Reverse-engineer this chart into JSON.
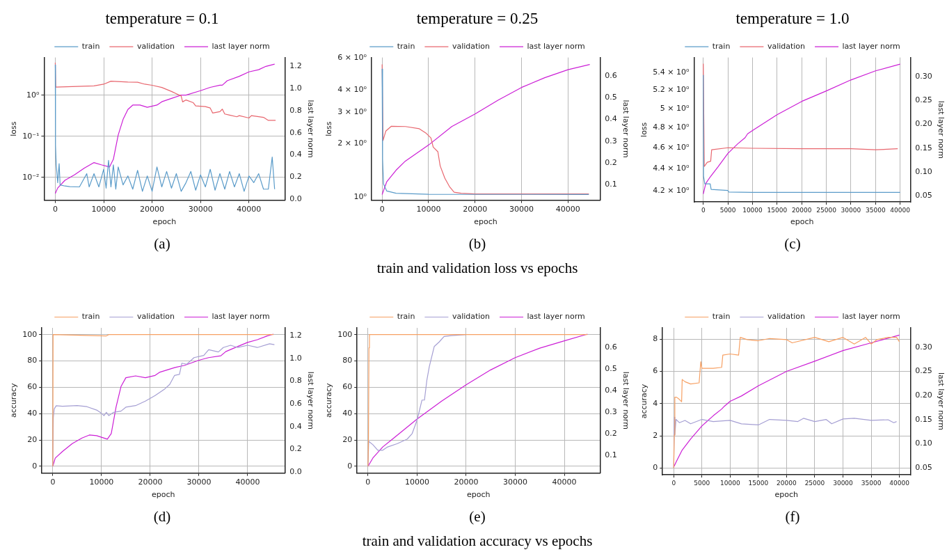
{
  "chart_data": [
    {
      "type": "line",
      "title": "temperature = 0.1",
      "xlabel": "epoch",
      "ylabel": "loss",
      "y2label": "last layer norm",
      "annotations": [
        "(a)"
      ],
      "log": "y",
      "grid": true,
      "legend": "top",
      "xlim": [
        -2300,
        47400
      ],
      "xticks": [
        0,
        10000,
        20000,
        30000,
        40000
      ],
      "ylim": [
        0.0028,
        8.3
      ],
      "yticks": [
        {
          "value": 0.01,
          "label": "10⁻²"
        },
        {
          "value": 0.1,
          "label": "10⁻¹"
        },
        {
          "value": 1,
          "label": "10⁰"
        }
      ],
      "y2lim": [
        -0.01,
        1.28
      ],
      "y2ticks": [
        {
          "value": 0,
          "label": "0.0"
        },
        0.2,
        0.4,
        0.6,
        0.8,
        {
          "value": 1,
          "label": "1.0"
        },
        1.2
      ],
      "series": [
        {
          "name": "train",
          "color": "#5a9bc9",
          "x": [
            0,
            50,
            200,
            500,
            800,
            1000,
            2000,
            3000,
            5000,
            6500,
            7000,
            8000,
            9000,
            10000,
            10500,
            11000,
            11500,
            12000,
            12500,
            13000,
            14000,
            15000,
            16000,
            17000,
            18000,
            19000,
            20000,
            21000,
            22000,
            23000,
            24000,
            25000,
            26000,
            27000,
            28000,
            29000,
            30000,
            31000,
            32000,
            33000,
            34000,
            35000,
            36000,
            37000,
            38000,
            39000,
            40000,
            41000,
            42000,
            43000,
            44000,
            44800,
            45300
          ],
          "values": [
            5.5,
            0.062,
            0.0203,
            0.0075,
            0.0216,
            0.0066,
            0.0062,
            0.006,
            0.0059,
            0.0124,
            0.0059,
            0.0124,
            0.0059,
            0.0158,
            0.0055,
            0.026,
            0.0059,
            0.0203,
            0.0052,
            0.018,
            0.0066,
            0.0109,
            0.0052,
            0.0149,
            0.0046,
            0.0109,
            0.0046,
            0.018,
            0.0059,
            0.014,
            0.0055,
            0.0124,
            0.0046,
            0.0075,
            0.014,
            0.0049,
            0.0116,
            0.0059,
            0.0158,
            0.0049,
            0.0124,
            0.0052,
            0.014,
            0.0059,
            0.0124,
            0.0046,
            0.0109,
            0.0075,
            0.0124,
            0.0052,
            0.0052,
            0.0314,
            0.0052
          ]
        },
        {
          "name": "validation",
          "color": "#e8666e",
          "x": [
            0,
            100,
            8000,
            10000,
            11500,
            15000,
            17000,
            18500,
            20000,
            22000,
            24000,
            26000,
            26300,
            27000,
            28500,
            29000,
            31000,
            32000,
            32500,
            34000,
            34500,
            35000,
            36000,
            37500,
            38000,
            40000,
            40500,
            43000,
            44000,
            45500
          ],
          "values": [
            6.2,
            1.58,
            1.69,
            1.86,
            2.2,
            2.1,
            2.08,
            1.86,
            1.75,
            1.55,
            1.24,
            0.96,
            0.69,
            0.77,
            0.66,
            0.55,
            0.53,
            0.49,
            0.37,
            0.4,
            0.46,
            0.35,
            0.33,
            0.3,
            0.32,
            0.28,
            0.32,
            0.29,
            0.245,
            0.245
          ]
        },
        {
          "name": "last layer norm",
          "color": "#cc1fd6",
          "axis": "y2",
          "x": [
            0,
            500,
            2000,
            4000,
            6000,
            8000,
            9500,
            11200,
            12000,
            13000,
            14000,
            15000,
            16000,
            17500,
            19000,
            21000,
            22000,
            24000,
            26000,
            27000,
            30000,
            32000,
            34000,
            34500,
            35500,
            38000,
            40000,
            42000,
            43500,
            45300
          ],
          "values": [
            0.05,
            0.1,
            0.17,
            0.22,
            0.28,
            0.33,
            0.31,
            0.29,
            0.36,
            0.58,
            0.72,
            0.81,
            0.85,
            0.85,
            0.83,
            0.85,
            0.88,
            0.91,
            0.94,
            0.94,
            0.98,
            1.01,
            1.03,
            1.03,
            1.07,
            1.11,
            1.15,
            1.17,
            1.2,
            1.22
          ]
        }
      ]
    },
    {
      "type": "line",
      "title": "temperature = 0.25",
      "xlabel": "epoch",
      "ylabel": "loss",
      "y2label": "last layer norm",
      "annotations": [
        "(b)",
        "train and validation loss vs epochs"
      ],
      "log": "y",
      "grid": "x",
      "legend": "top",
      "xlim": [
        -2300,
        46900
      ],
      "xticks": [
        0,
        10000,
        20000,
        30000,
        40000
      ],
      "ylim": [
        0.965,
        6.05
      ],
      "yticks": [
        {
          "value": 1,
          "label": "10⁰"
        },
        {
          "value": 2,
          "label": "2 × 10⁰"
        },
        {
          "value": 3,
          "label": "3 × 10⁰"
        },
        {
          "value": 4,
          "label": "4 × 10⁰"
        },
        {
          "value": 6,
          "label": "6 × 10⁰"
        }
      ],
      "y2lim": [
        0.028,
        0.685
      ],
      "y2ticks": [
        0.1,
        0.2,
        0.3,
        0.4,
        0.5,
        0.6
      ],
      "series": [
        {
          "name": "train",
          "color": "#5a9bc9",
          "x": [
            0,
            100,
            300,
            1000,
            3000,
            10000,
            44500
          ],
          "values": [
            5.22,
            1.64,
            1.19,
            1.086,
            1.055,
            1.042,
            1.039
          ]
        },
        {
          "name": "validation",
          "color": "#e8666e",
          "x": [
            0,
            200,
            800,
            2000,
            5000,
            8000,
            9500,
            10500,
            11000,
            12000,
            12500,
            13500,
            14500,
            15500,
            17000,
            20000,
            30000,
            44500
          ],
          "values": [
            5.54,
            2.08,
            2.35,
            2.5,
            2.49,
            2.42,
            2.28,
            2.15,
            1.91,
            1.8,
            1.5,
            1.28,
            1.15,
            1.07,
            1.055,
            1.045,
            1.045,
            1.045
          ]
        },
        {
          "name": "last layer norm",
          "color": "#cc1fd6",
          "axis": "y2",
          "x": [
            0,
            1000,
            3000,
            5000,
            10000,
            15000,
            20000,
            25000,
            30000,
            35000,
            40000,
            44700
          ],
          "values": [
            0.054,
            0.113,
            0.166,
            0.208,
            0.282,
            0.367,
            0.425,
            0.489,
            0.547,
            0.592,
            0.629,
            0.653
          ]
        }
      ]
    },
    {
      "type": "line",
      "title": "temperature = 1.0",
      "xlabel": "epoch",
      "ylabel": "loss",
      "y2label": "last layer norm",
      "annotations": [
        "(c)"
      ],
      "log": "y",
      "grid": "x",
      "legend": "top",
      "xlim": [
        -1900,
        42070
      ],
      "xticks": [
        0,
        5000,
        10000,
        15000,
        20000,
        25000,
        30000,
        35000,
        40000
      ],
      "ylim": [
        4.123,
        5.573
      ],
      "yticks": [
        {
          "value": 4.2,
          "label": "4.2 × 10⁰"
        },
        {
          "value": 4.4,
          "label": "4.4 × 10⁰"
        },
        {
          "value": 4.6,
          "label": "4.6 × 10⁰"
        },
        {
          "value": 4.8,
          "label": "4.8 × 10⁰"
        },
        {
          "value": 5,
          "label": "5 × 10⁰"
        },
        {
          "value": 5.2,
          "label": "5.2 × 10⁰"
        },
        {
          "value": 5.4,
          "label": "5.4 × 10⁰"
        }
      ],
      "y2lim": [
        0.0374,
        0.34
      ],
      "y2ticks": [
        0.05,
        {
          "value": 0.1,
          "label": "0.10"
        },
        0.15,
        {
          "value": 0.2,
          "label": "0.20"
        },
        0.25,
        {
          "value": 0.3,
          "label": "0.30"
        }
      ],
      "series": [
        {
          "name": "train",
          "color": "#5a9bc9",
          "x": [
            0,
            50,
            300,
            1400,
            1600,
            5000,
            5200,
            10000,
            40000
          ],
          "values": [
            5.37,
            4.33,
            4.26,
            4.26,
            4.21,
            4.2,
            4.186,
            4.183,
            4.183
          ]
        },
        {
          "name": "validation",
          "color": "#e8666e",
          "x": [
            0,
            200,
            800,
            1500,
            1700,
            5000,
            10000,
            20000,
            30000,
            35000,
            39500
          ],
          "values": [
            5.5,
            4.42,
            4.46,
            4.47,
            4.58,
            4.6,
            4.595,
            4.59,
            4.59,
            4.58,
            4.59
          ]
        },
        {
          "name": "last layer norm",
          "color": "#cc1fd6",
          "axis": "y2",
          "x": [
            0,
            500,
            1500,
            3000,
            5000,
            7000,
            8500,
            9000,
            10000,
            15000,
            20000,
            25000,
            30000,
            35000,
            40000
          ],
          "values": [
            0.054,
            0.076,
            0.091,
            0.111,
            0.139,
            0.159,
            0.172,
            0.18,
            0.187,
            0.22,
            0.248,
            0.27,
            0.293,
            0.312,
            0.326
          ]
        }
      ]
    },
    {
      "type": "line",
      "xlabel": "epoch",
      "ylabel": "accuracy",
      "y2label": "last layer norm",
      "annotations": [
        "(d)"
      ],
      "grid": true,
      "legend": "top",
      "xlim": [
        -2240,
        47630
      ],
      "xticks": [
        0,
        10000,
        20000,
        30000,
        40000
      ],
      "ylim": [
        -5.1,
        105.1
      ],
      "yticks": [
        0,
        20,
        40,
        60,
        80,
        100
      ],
      "y2lim": [
        -0.01,
        1.269
      ],
      "y2ticks": [
        {
          "value": 0,
          "label": "0.0"
        },
        0.2,
        0.4,
        0.6,
        0.8,
        {
          "value": 1,
          "label": "1.0"
        },
        1.2
      ],
      "series": [
        {
          "name": "train",
          "color": "#f7a063",
          "x": [
            0,
            60,
            11000,
            11500,
            45300
          ],
          "values": [
            0,
            100,
            99,
            100,
            100
          ]
        },
        {
          "name": "validation",
          "color": "#a59fd3",
          "x": [
            0,
            100,
            300,
            700,
            2000,
            5000,
            7000,
            9000,
            10000,
            10500,
            11000,
            11500,
            12500,
            14000,
            15000,
            17000,
            19000,
            21000,
            23000,
            24000,
            25000,
            26000,
            26500,
            27500,
            29000,
            31000,
            32000,
            34000,
            35000,
            36500,
            38000,
            40000,
            42000,
            44500,
            45500
          ],
          "values": [
            0,
            36.8,
            43.6,
            46,
            45.6,
            46.1,
            45.3,
            42.7,
            40.2,
            38.5,
            41,
            38.5,
            41,
            41.9,
            44.9,
            46.1,
            49.5,
            53.7,
            58.8,
            62.2,
            69,
            69.8,
            78.3,
            77.5,
            82.5,
            84.2,
            88.5,
            86.8,
            90.2,
            91.9,
            90.2,
            91.9,
            90.2,
            93,
            92.4
          ]
        },
        {
          "name": "last layer norm",
          "color": "#cc1fd6",
          "axis": "y2",
          "x": [
            0,
            500,
            2000,
            4000,
            6000,
            7500,
            9000,
            11200,
            12000,
            13000,
            14000,
            15000,
            17000,
            19000,
            21000,
            22000,
            25000,
            27000,
            30000,
            32000,
            34500,
            35500,
            38000,
            40000,
            42000,
            44000,
            45300
          ],
          "values": [
            0.049,
            0.122,
            0.181,
            0.25,
            0.299,
            0.325,
            0.319,
            0.289,
            0.338,
            0.574,
            0.752,
            0.83,
            0.846,
            0.83,
            0.85,
            0.879,
            0.919,
            0.938,
            0.984,
            1.007,
            1.023,
            1.06,
            1.106,
            1.141,
            1.165,
            1.198,
            1.214
          ]
        }
      ]
    },
    {
      "type": "line",
      "xlabel": "epoch",
      "ylabel": "accuracy",
      "y2label": "last layer norm",
      "annotations": [
        "(e)",
        "train and validation accuracy vs epochs"
      ],
      "grid": true,
      "legend": "top",
      "xlim": [
        -2220,
        47260
      ],
      "xticks": [
        0,
        10000,
        20000,
        30000,
        40000
      ],
      "ylim": [
        -5.1,
        105.1
      ],
      "yticks": [
        0,
        20,
        40,
        60,
        80,
        100
      ],
      "y2lim": [
        0.018,
        0.692
      ],
      "y2ticks": [
        0.1,
        0.2,
        0.3,
        0.4,
        0.5,
        0.6
      ],
      "series": [
        {
          "name": "train",
          "color": "#f7a063",
          "x": [
            0,
            100,
            200,
            300,
            44700
          ],
          "values": [
            0,
            20,
            90,
            100,
            100
          ]
        },
        {
          "name": "validation",
          "color": "#a59fd3",
          "x": [
            0,
            150,
            1000,
            2000,
            3000,
            4000,
            6000,
            8000,
            9000,
            10000,
            10500,
            11000,
            11500,
            12000,
            12500,
            13500,
            14500,
            15500,
            17000,
            20000
          ],
          "values": [
            0,
            19,
            16.4,
            12.2,
            12.2,
            14.7,
            17.3,
            20.7,
            24.9,
            35.1,
            42.7,
            50.3,
            50.3,
            65.6,
            75.8,
            91,
            94.4,
            98.6,
            99.2,
            100
          ]
        },
        {
          "name": "last layer norm",
          "color": "#cc1fd6",
          "axis": "y2",
          "x": [
            0,
            1000,
            3000,
            5000,
            10000,
            15000,
            20000,
            25000,
            30000,
            35000,
            40000,
            44700
          ],
          "values": [
            0.049,
            0.088,
            0.139,
            0.176,
            0.269,
            0.352,
            0.428,
            0.497,
            0.554,
            0.598,
            0.632,
            0.663
          ]
        }
      ]
    },
    {
      "type": "line",
      "xlabel": "epoch",
      "ylabel": "accuracy",
      "y2label": "last layer norm",
      "annotations": [
        "(f)"
      ],
      "grid": true,
      "legend": "top",
      "xlim": [
        -1980,
        41940
      ],
      "xticks": [
        0,
        5000,
        10000,
        15000,
        20000,
        25000,
        30000,
        35000,
        40000
      ],
      "ylim": [
        -0.41,
        8.7
      ],
      "yticks": [
        0,
        2,
        4,
        6,
        8
      ],
      "y2lim": [
        0.036,
        0.34
      ],
      "y2ticks": [
        0.05,
        {
          "value": 0.1,
          "label": "0.10"
        },
        0.15,
        {
          "value": 0.2,
          "label": "0.20"
        },
        0.25,
        {
          "value": 0.3,
          "label": "0.30"
        }
      ],
      "series": [
        {
          "name": "train",
          "color": "#f7a063",
          "x": [
            0,
            100,
            200,
            500,
            1000,
            1400,
            1500,
            2000,
            3000,
            4500,
            4800,
            5000,
            7000,
            8500,
            8700,
            10000,
            11500,
            11800,
            13000,
            15000,
            17000,
            20000,
            21000,
            25000,
            27500,
            30000,
            32000,
            34000,
            35000,
            36000,
            38000,
            39500,
            40000
          ],
          "values": [
            0,
            2.06,
            4.4,
            4.4,
            4.26,
            4.12,
            5.5,
            5.36,
            5.22,
            5.29,
            6.6,
            6.19,
            6.19,
            6.25,
            7.01,
            7.08,
            7.01,
            8.11,
            7.97,
            7.9,
            8.04,
            7.97,
            7.77,
            8.11,
            7.84,
            8.11,
            7.7,
            8.11,
            7.7,
            7.97,
            8.11,
            8.11,
            7.84
          ]
        },
        {
          "name": "validation",
          "color": "#a59fd3",
          "x": [
            0,
            100,
            200,
            400,
            1000,
            2000,
            3000,
            5000,
            7000,
            10000,
            12000,
            15000,
            17000,
            20000,
            22000,
            23000,
            25000,
            27000,
            28000,
            30000,
            32000,
            35000,
            38000,
            39000,
            39500
          ],
          "values": [
            0,
            3.16,
            2.06,
            3.02,
            2.82,
            2.96,
            2.75,
            3.02,
            2.89,
            2.96,
            2.75,
            2.68,
            3.02,
            2.96,
            2.89,
            3.09,
            2.89,
            3.02,
            2.75,
            3.05,
            3.09,
            2.96,
            3,
            2.82,
            2.89
          ]
        },
        {
          "name": "last layer norm",
          "color": "#cc1fd6",
          "axis": "y2",
          "x": [
            0,
            500,
            1500,
            3000,
            5000,
            7000,
            8500,
            9000,
            10000,
            12000,
            15000,
            20000,
            25000,
            30000,
            35000,
            40000
          ],
          "values": [
            0.052,
            0.064,
            0.087,
            0.11,
            0.137,
            0.158,
            0.172,
            0.178,
            0.188,
            0.199,
            0.22,
            0.25,
            0.271,
            0.293,
            0.309,
            0.325
          ]
        }
      ]
    }
  ]
}
